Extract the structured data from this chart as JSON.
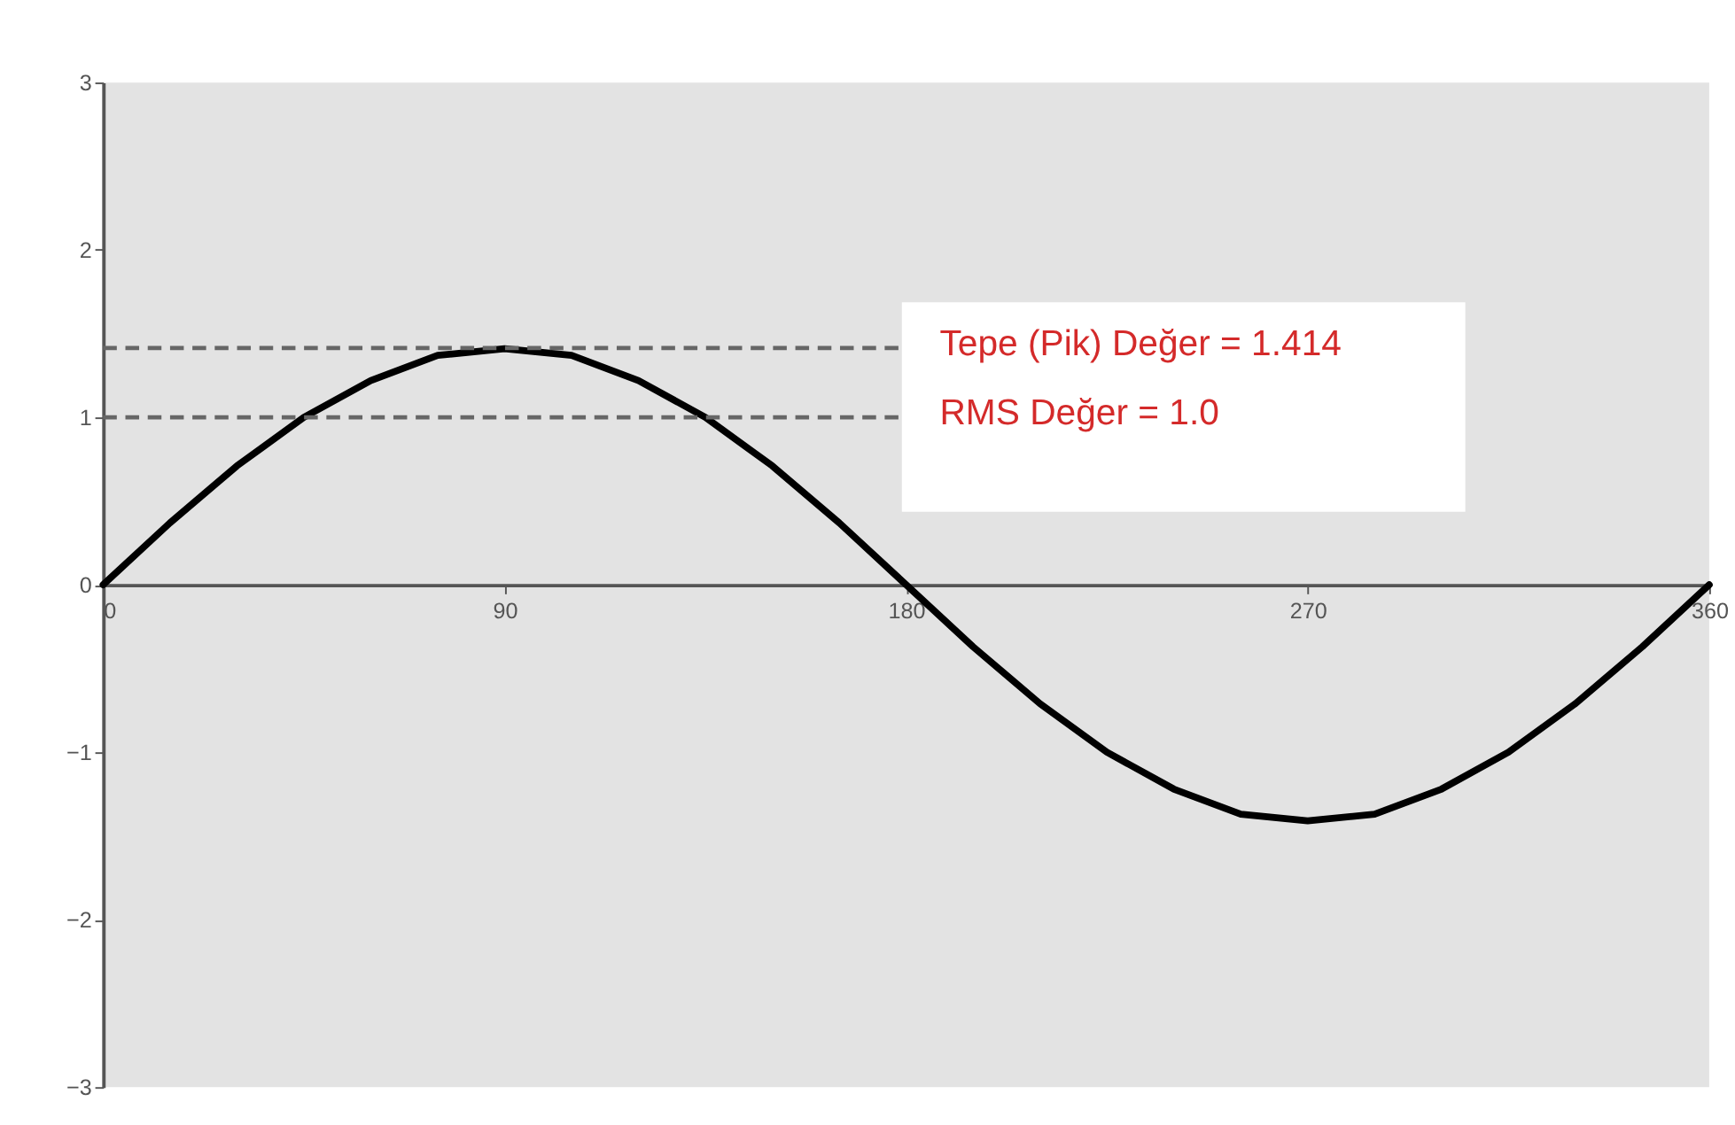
{
  "chart_data": {
    "type": "line",
    "x": [
      0,
      15,
      30,
      45,
      60,
      75,
      90,
      105,
      120,
      135,
      150,
      165,
      180,
      195,
      210,
      225,
      240,
      255,
      270,
      285,
      300,
      315,
      330,
      345,
      360
    ],
    "series": [
      {
        "color": "#000000",
        "values": [
          0,
          0.37,
          0.71,
          1.0,
          1.22,
          1.37,
          1.41,
          1.37,
          1.22,
          1.0,
          0.71,
          0.37,
          0,
          -0.37,
          -0.71,
          -1.0,
          -1.22,
          -1.37,
          -1.41,
          -1.37,
          -1.22,
          -1.0,
          -0.71,
          -0.37,
          0
        ]
      }
    ],
    "xlim": [
      0,
      360
    ],
    "xticks": [
      0,
      90,
      180,
      270,
      360
    ],
    "ylim": [
      -3,
      3
    ],
    "yticks": [
      -3,
      -2,
      -1,
      0,
      1,
      2,
      3
    ],
    "ref_lines": [
      {
        "axis": "y",
        "value": 1.414,
        "label": "Tepe (Pik) Değer = 1.414",
        "color": "#666666",
        "line_style": "dashed"
      },
      {
        "axis": "y",
        "value": 1.0,
        "label": "RMS Değer = 1.0",
        "color": "#666666",
        "line_style": "dashed"
      }
    ],
    "grid": false,
    "marker": "none",
    "line_style": "solid"
  }
}
